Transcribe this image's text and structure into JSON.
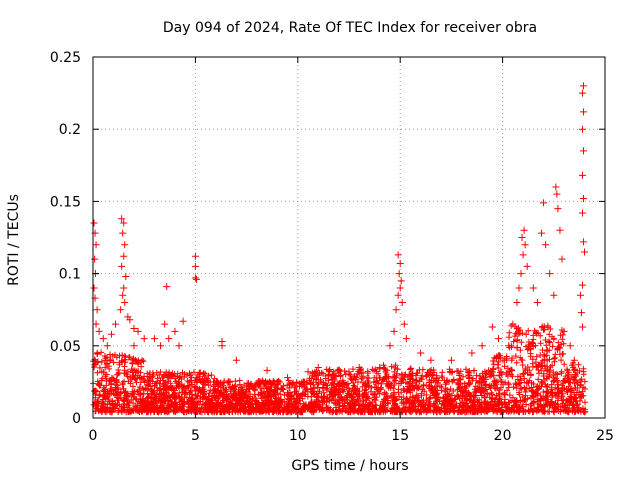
{
  "chart_data": {
    "type": "scatter",
    "title": "Day 094 of 2024, Rate Of TEC Index for receiver obra",
    "xlabel": "GPS time / hours",
    "ylabel": "ROTI / TECUs",
    "xlim": [
      0,
      25
    ],
    "ylim": [
      0,
      0.25
    ],
    "x_ticks": [
      0,
      5,
      10,
      15,
      20,
      25
    ],
    "x_tick_labels": [
      "0",
      "5",
      "10",
      "15",
      "20",
      "25"
    ],
    "y_ticks": [
      0,
      0.05,
      0.1,
      0.15,
      0.2,
      0.25
    ],
    "y_tick_labels": [
      "0",
      "0.05",
      "0.1",
      "0.15",
      "0.2",
      "0.25"
    ],
    "grid": true,
    "marker": "plus",
    "color": "#ff0000",
    "series": [
      {
        "points": [
          [
            0.05,
            0.135
          ],
          [
            0.1,
            0.128
          ],
          [
            0.15,
            0.12
          ],
          [
            0.08,
            0.11
          ],
          [
            0.12,
            0.1
          ],
          [
            0.05,
            0.09
          ],
          [
            0.1,
            0.083
          ],
          [
            0.2,
            0.075
          ],
          [
            0.15,
            0.065
          ],
          [
            0.3,
            0.06
          ],
          [
            0.5,
            0.055
          ],
          [
            0.7,
            0.05
          ],
          [
            0.9,
            0.058
          ],
          [
            1.1,
            0.065
          ],
          [
            1.4,
            0.138
          ],
          [
            1.5,
            0.135
          ],
          [
            1.45,
            0.128
          ],
          [
            1.55,
            0.12
          ],
          [
            1.5,
            0.112
          ],
          [
            1.4,
            0.105
          ],
          [
            1.6,
            0.098
          ],
          [
            1.5,
            0.09
          ],
          [
            1.45,
            0.085
          ],
          [
            1.55,
            0.08
          ],
          [
            1.35,
            0.075
          ],
          [
            1.7,
            0.07
          ],
          [
            1.8,
            0.068
          ],
          [
            2.0,
            0.062
          ],
          [
            2.2,
            0.06
          ],
          [
            2.5,
            0.055
          ],
          [
            2.0,
            0.05
          ],
          [
            3.0,
            0.055
          ],
          [
            3.3,
            0.05
          ],
          [
            3.6,
            0.091
          ],
          [
            3.5,
            0.065
          ],
          [
            3.7,
            0.055
          ],
          [
            4.0,
            0.06
          ],
          [
            4.4,
            0.067
          ],
          [
            4.2,
            0.05
          ],
          [
            5.0,
            0.112
          ],
          [
            5.0,
            0.105
          ],
          [
            5.0,
            0.097
          ],
          [
            5.05,
            0.096
          ],
          [
            6.3,
            0.053
          ],
          [
            6.3,
            0.05
          ],
          [
            7.0,
            0.04
          ],
          [
            8.5,
            0.033
          ],
          [
            9.5,
            0.028
          ],
          [
            10.5,
            0.032
          ],
          [
            11.0,
            0.035
          ],
          [
            12.0,
            0.033
          ],
          [
            12.5,
            0.032
          ],
          [
            13.0,
            0.035
          ],
          [
            14.0,
            0.035
          ],
          [
            14.5,
            0.05
          ],
          [
            14.7,
            0.06
          ],
          [
            14.8,
            0.075
          ],
          [
            14.9,
            0.085
          ],
          [
            15.0,
            0.09
          ],
          [
            14.95,
            0.1
          ],
          [
            15.0,
            0.107
          ],
          [
            14.9,
            0.113
          ],
          [
            15.05,
            0.095
          ],
          [
            15.1,
            0.08
          ],
          [
            15.2,
            0.065
          ],
          [
            15.3,
            0.055
          ],
          [
            16.0,
            0.045
          ],
          [
            16.5,
            0.04
          ],
          [
            17.5,
            0.04
          ],
          [
            18.5,
            0.045
          ],
          [
            19.0,
            0.05
          ],
          [
            19.5,
            0.063
          ],
          [
            19.8,
            0.055
          ],
          [
            20.3,
            0.05
          ],
          [
            20.5,
            0.065
          ],
          [
            20.7,
            0.08
          ],
          [
            20.8,
            0.09
          ],
          [
            20.9,
            0.1
          ],
          [
            21.0,
            0.113
          ],
          [
            20.95,
            0.125
          ],
          [
            21.05,
            0.13
          ],
          [
            21.1,
            0.12
          ],
          [
            21.2,
            0.105
          ],
          [
            21.5,
            0.09
          ],
          [
            21.7,
            0.08
          ],
          [
            21.9,
            0.128
          ],
          [
            22.0,
            0.149
          ],
          [
            22.1,
            0.12
          ],
          [
            22.3,
            0.1
          ],
          [
            22.5,
            0.085
          ],
          [
            22.6,
            0.16
          ],
          [
            22.65,
            0.155
          ],
          [
            22.7,
            0.145
          ],
          [
            22.8,
            0.13
          ],
          [
            22.9,
            0.11
          ],
          [
            23.0,
            0.06
          ],
          [
            23.3,
            0.05
          ],
          [
            23.5,
            0.04
          ],
          [
            23.8,
            0.085
          ],
          [
            23.85,
            0.073
          ],
          [
            23.9,
            0.063
          ],
          [
            23.95,
            0.23
          ],
          [
            23.9,
            0.225
          ],
          [
            23.95,
            0.212
          ],
          [
            23.9,
            0.2
          ],
          [
            23.95,
            0.185
          ],
          [
            23.9,
            0.168
          ],
          [
            23.95,
            0.152
          ],
          [
            23.9,
            0.142
          ],
          [
            23.95,
            0.122
          ],
          [
            24.0,
            0.115
          ],
          [
            23.9,
            0.092
          ]
        ]
      }
    ]
  }
}
